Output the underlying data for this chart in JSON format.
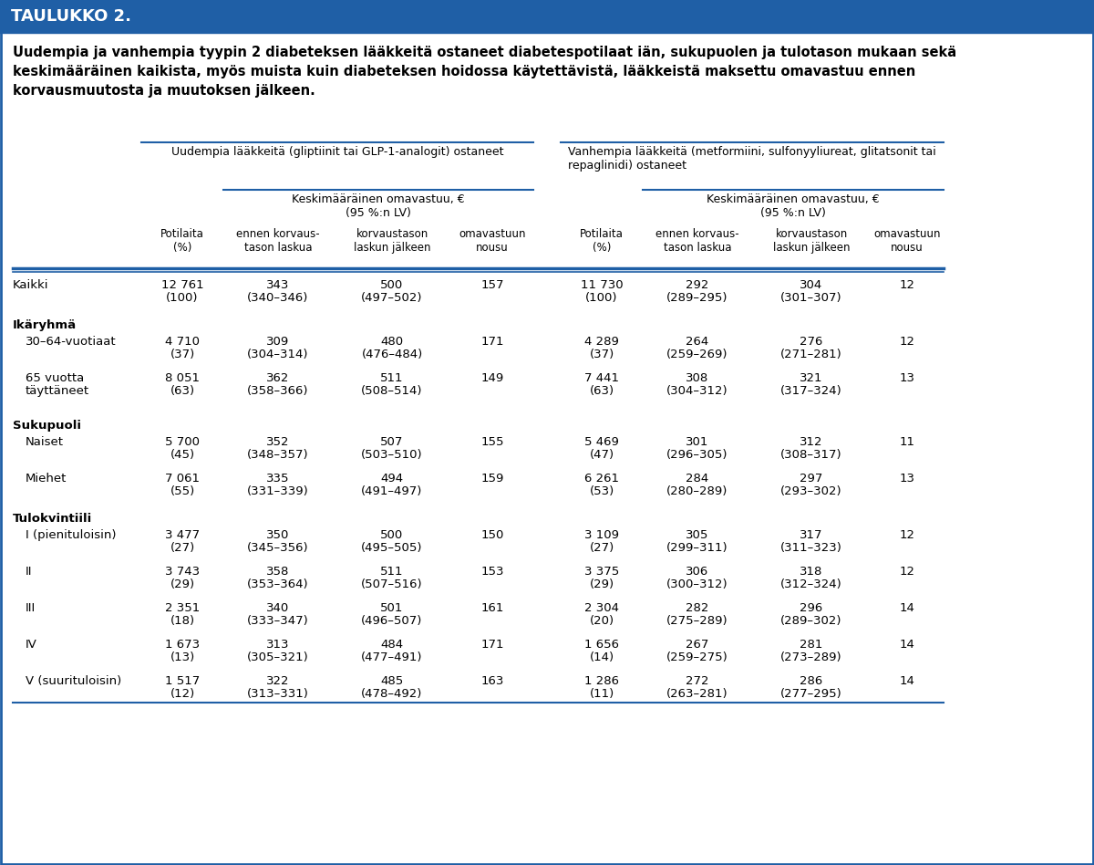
{
  "title_bar_text": "TAULUKKO 2.",
  "title_bar_color": "#1f5fa6",
  "title_bar_text_color": "#ffffff",
  "description": "Uudempia ja vanhempia tyypin 2 diabeteksen lääkkeitä ostaneet diabetespotilaat iän, sukupuolen ja tulotason mukaan sekä\nkeskimääräinen kaikista, myös muista kuin diabeteksen hoidossa käytettävistä, lääkkeistä maksettu omavastuu ennen\nkorvausmuutosta ja muutoksen jälkeen.",
  "col_group1_header": "Uudempia lääkkeitä (gliptiinit tai GLP-1-analogit) ostaneet",
  "col_group2_header": "Vanhempia lääkkeitä (metformiini, sulfonyyliureat, glitatsonit tai\nrepaglinidi) ostaneet",
  "subheader": "Keskimääräinen omavastuu, €\n(95 %:n LV)",
  "col_headers": [
    "Potilaita\n(%)",
    "ennen korvaus-\ntason laskua",
    "korvaustason\nlaskun jälkeen",
    "omavastuun\nnousu",
    "Potilaita\n(%)",
    "ennen korvaus-\ntason laskua",
    "korvaustason\nlaskun jälkeen",
    "omavastuun\nnousu"
  ],
  "row_labels": [
    "Kaikki",
    "",
    "Ikäryhmä",
    "",
    "30–64-vuotiaat",
    "",
    "65 vuotta\ntäyttäneet",
    "",
    "Sukupuoli",
    "",
    "Naiset",
    "",
    "Miehet",
    "",
    "Tulokvintiili",
    "",
    "I (pienituloisin)",
    "",
    "II",
    "",
    "III",
    "",
    "IV",
    "",
    "V (suurituloisin)",
    ""
  ],
  "rows": [
    {
      "label": "Kaikki",
      "new_pat": "12 761\n(100)",
      "new_before": "343\n(340–346)",
      "new_after": "500\n(497–502)",
      "new_rise": "157",
      "old_pat": "11 730\n(100)",
      "old_before": "292\n(289–295)",
      "old_after": "304\n(301–307)",
      "old_rise": "12",
      "is_section": false,
      "indent": false
    },
    {
      "label": "Ikäryhmä",
      "is_section": true
    },
    {
      "label": "30–64-vuotiaat",
      "new_pat": "4 710\n(37)",
      "new_before": "309\n(304–314)",
      "new_after": "480\n(476–484)",
      "new_rise": "171",
      "old_pat": "4 289\n(37)",
      "old_before": "264\n(259–269)",
      "old_after": "276\n(271–281)",
      "old_rise": "12",
      "is_section": false,
      "indent": true
    },
    {
      "label": "65 vuotta\ntäyttäneet",
      "new_pat": "8 051\n(63)",
      "new_before": "362\n(358–366)",
      "new_after": "511\n(508–514)",
      "new_rise": "149",
      "old_pat": "7 441\n(63)",
      "old_before": "308\n(304–312)",
      "old_after": "321\n(317–324)",
      "old_rise": "13",
      "is_section": false,
      "indent": true
    },
    {
      "label": "Sukupuoli",
      "is_section": true
    },
    {
      "label": "Naiset",
      "new_pat": "5 700\n(45)",
      "new_before": "352\n(348–357)",
      "new_after": "507\n(503–510)",
      "new_rise": "155",
      "old_pat": "5 469\n(47)",
      "old_before": "301\n(296–305)",
      "old_after": "312\n(308–317)",
      "old_rise": "11",
      "is_section": false,
      "indent": true
    },
    {
      "label": "Miehet",
      "new_pat": "7 061\n(55)",
      "new_before": "335\n(331–339)",
      "new_after": "494\n(491–497)",
      "new_rise": "159",
      "old_pat": "6 261\n(53)",
      "old_before": "284\n(280–289)",
      "old_after": "297\n(293–302)",
      "old_rise": "13",
      "is_section": false,
      "indent": true
    },
    {
      "label": "Tulokvintiili",
      "is_section": true
    },
    {
      "label": "I (pienituloisin)",
      "new_pat": "3 477\n(27)",
      "new_before": "350\n(345–356)",
      "new_after": "500\n(495–505)",
      "new_rise": "150",
      "old_pat": "3 109\n(27)",
      "old_before": "305\n(299–311)",
      "old_after": "317\n(311–323)",
      "old_rise": "12",
      "is_section": false,
      "indent": true
    },
    {
      "label": "II",
      "new_pat": "3 743\n(29)",
      "new_before": "358\n(353–364)",
      "new_after": "511\n(507–516)",
      "new_rise": "153",
      "old_pat": "3 375\n(29)",
      "old_before": "306\n(300–312)",
      "old_after": "318\n(312–324)",
      "old_rise": "12",
      "is_section": false,
      "indent": true
    },
    {
      "label": "III",
      "new_pat": "2 351\n(18)",
      "new_before": "340\n(333–347)",
      "new_after": "501\n(496–507)",
      "new_rise": "161",
      "old_pat": "2 304\n(20)",
      "old_before": "282\n(275–289)",
      "old_after": "296\n(289–302)",
      "old_rise": "14",
      "is_section": false,
      "indent": true
    },
    {
      "label": "IV",
      "new_pat": "1 673\n(13)",
      "new_before": "313\n(305–321)",
      "new_after": "484\n(477–491)",
      "new_rise": "171",
      "old_pat": "1 656\n(14)",
      "old_before": "267\n(259–275)",
      "old_after": "281\n(273–289)",
      "old_rise": "14",
      "is_section": false,
      "indent": true
    },
    {
      "label": "V (suurituloisin)",
      "new_pat": "1 517\n(12)",
      "new_before": "322\n(313–331)",
      "new_after": "485\n(478–492)",
      "new_rise": "163",
      "old_pat": "1 286\n(11)",
      "old_before": "272\n(263–281)",
      "old_after": "286\n(277–295)",
      "old_rise": "14",
      "is_section": false,
      "indent": true
    }
  ],
  "background_color": "#ffffff",
  "border_color": "#1f5fa6",
  "header_line_color": "#1f5fa6",
  "text_color": "#000000"
}
